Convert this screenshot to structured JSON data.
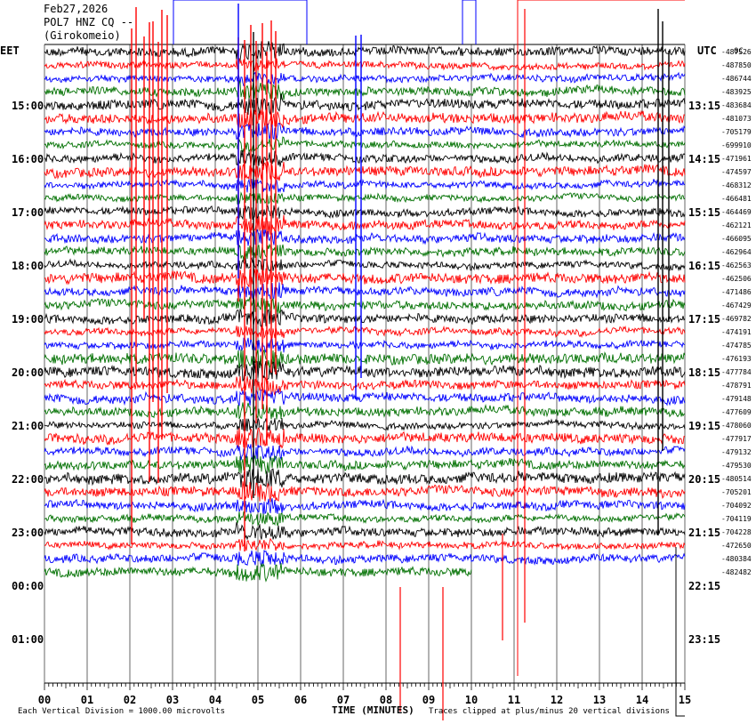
{
  "header": {
    "date": "Feb27,2026",
    "station": "POL7 HNZ CQ --",
    "location": "(Girokomeio)"
  },
  "axis_labels": {
    "left_zone": "EET",
    "right_zone": "UTC",
    "top_right_mark": "0C"
  },
  "footer": {
    "left_note": "Each Vertical Division = 1000.00 microvolts",
    "xlabel": "TIME (MINUTES)",
    "right_note": "Traces clipped at plus/minus 20 vertical divisions"
  },
  "colors": {
    "trace_cycle": [
      "#000000",
      "#ff0000",
      "#0000ff",
      "#007000"
    ],
    "grid": "#000000",
    "background": "#ffffff"
  },
  "chart_data": {
    "type": "line",
    "title": "",
    "xlabel": "TIME (MINUTES)",
    "x_range": [
      0,
      15
    ],
    "x_ticks": [
      "00",
      "01",
      "02",
      "03",
      "04",
      "05",
      "06",
      "07",
      "08",
      "09",
      "10",
      "11",
      "12",
      "13",
      "14",
      "15"
    ],
    "left_hour_labels": [
      "15:00",
      "16:00",
      "17:00",
      "18:00",
      "19:00",
      "20:00",
      "21:00",
      "22:00",
      "23:00",
      "00:00",
      "01:00"
    ],
    "right_hour_labels": [
      "13:15",
      "14:15",
      "15:15",
      "16:15",
      "17:15",
      "18:15",
      "19:15",
      "20:15",
      "21:15",
      "22:15",
      "23:15"
    ],
    "trace_offsets": [
      "-487526",
      "-487850",
      "-486744",
      "-483925",
      "-483684",
      "-481073",
      "-705179",
      "-699910",
      "-471961",
      "-474597",
      "-468312",
      "-466481",
      "-464469",
      "-462121",
      "-466095",
      "-462964",
      "-462563",
      "-462506",
      "-471486",
      "-467429",
      "-469782",
      "-474191",
      "-474785",
      "-476193",
      "-477784",
      "-478791",
      "-479148",
      "-477609",
      "-478060",
      "-477917",
      "-479132",
      "-479530",
      "-480514",
      "-705201",
      "-704092",
      "-704119",
      "-704228",
      "-472650",
      "-480384",
      "-482482"
    ],
    "traces_per_hour": 4,
    "trace_count": 40,
    "last_trace_end_minute": 10.0,
    "trace_amplitude_divisions": 1.0,
    "clip_divisions": 20
  }
}
